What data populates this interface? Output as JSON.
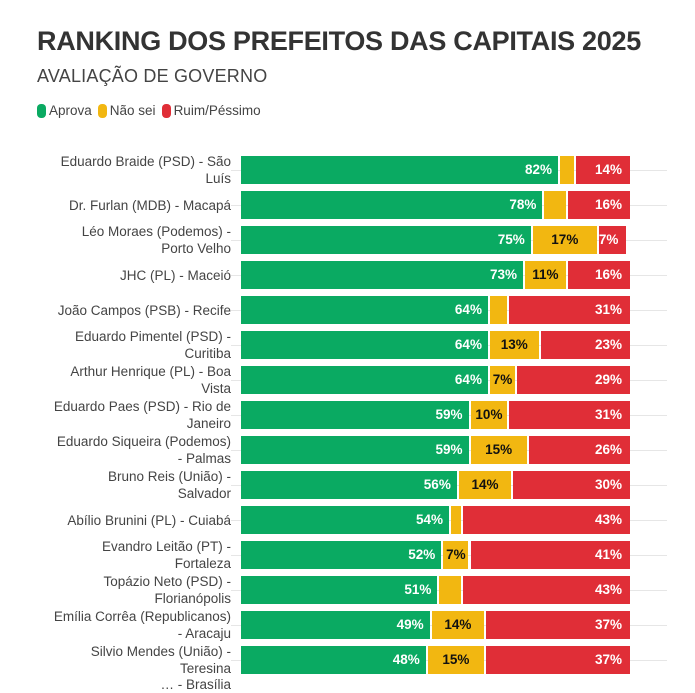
{
  "header": {
    "title": "RANKING DOS PREFEITOS DAS CAPITAIS 2025",
    "subtitle": "AVALIAÇÃO DE GOVERNO"
  },
  "legend": [
    {
      "label": "Aprova",
      "color": "#0aaa62"
    },
    {
      "label": "Não sei",
      "color": "#f2b711"
    },
    {
      "label": "Ruim/Péssimo",
      "color": "#e02e37"
    }
  ],
  "chart_data": {
    "type": "bar",
    "orientation": "horizontal",
    "stacked": true,
    "title": "RANKING DOS PREFEITOS DAS CAPITAIS 2025",
    "subtitle": "AVALIAÇÃO DE GOVERNO",
    "xlabel": "",
    "ylabel": "",
    "xlim": [
      0,
      100
    ],
    "grid": true,
    "legend_position": "top-left",
    "categories": [
      "Eduardo Braide (PSD) - São Luís",
      "Dr. Furlan (MDB) - Macapá",
      "Léo Moraes (Podemos) - Porto Velho",
      "JHC (PL) - Maceió",
      "João Campos (PSB) - Recife",
      "Eduardo Pimentel (PSD) - Curitiba",
      "Arthur Henrique (PL) - Boa Vista",
      "Eduardo Paes (PSD) - Rio de Janeiro",
      "Eduardo Siqueira (Podemos) - Palmas",
      "Bruno Reis (União) - Salvador",
      "Abílio Brunini (PL) - Cuiabá",
      "Evandro Leitão (PT) - Fortaleza",
      "Topázio Neto (PSD) - Florianópolis",
      "Emília Corrêa (Republicanos) - Aracaju",
      "Silvio Mendes (União) - Teresina"
    ],
    "label_lines": [
      [
        "Eduardo Braide (PSD) - São",
        "Luís"
      ],
      [
        "Dr. Furlan (MDB) - Macapá"
      ],
      [
        "Léo Moraes (Podemos) -",
        "Porto Velho"
      ],
      [
        "JHC (PL) - Maceió"
      ],
      [
        "João Campos (PSB) - Recife"
      ],
      [
        "Eduardo Pimentel (PSD) -",
        "Curitiba"
      ],
      [
        "Arthur Henrique (PL) - Boa",
        "Vista"
      ],
      [
        "Eduardo Paes (PSD) - Rio de",
        "Janeiro"
      ],
      [
        "Eduardo Siqueira (Podemos)",
        "- Palmas"
      ],
      [
        "Bruno Reis (União) -",
        "Salvador"
      ],
      [
        "Abílio Brunini (PL) - Cuiabá"
      ],
      [
        "Evandro Leitão (PT) -",
        "Fortaleza"
      ],
      [
        "Topázio Neto (PSD) -",
        "Florianópolis"
      ],
      [
        "Emília Corrêa (Republicanos)",
        "- Aracaju"
      ],
      [
        "Silvio Mendes (União) -",
        "Teresina"
      ]
    ],
    "series": [
      {
        "name": "Aprova",
        "color": "#0aaa62",
        "label_color": "#ffffff",
        "values": [
          82,
          78,
          75,
          73,
          64,
          64,
          64,
          59,
          59,
          56,
          54,
          52,
          51,
          49,
          48
        ],
        "show_label": [
          true,
          true,
          true,
          true,
          true,
          true,
          true,
          true,
          true,
          true,
          true,
          true,
          true,
          true,
          true
        ]
      },
      {
        "name": "Não sei",
        "color": "#f2b711",
        "label_color": "#111111",
        "values": [
          4,
          6,
          17,
          11,
          5,
          13,
          7,
          10,
          15,
          14,
          3,
          7,
          6,
          14,
          15
        ],
        "show_label": [
          false,
          false,
          true,
          true,
          false,
          true,
          true,
          true,
          true,
          true,
          false,
          true,
          false,
          true,
          true
        ]
      },
      {
        "name": "Ruim/Péssimo",
        "color": "#e02e37",
        "label_color": "#ffffff",
        "values": [
          14,
          16,
          7,
          16,
          31,
          23,
          29,
          31,
          26,
          30,
          43,
          41,
          43,
          37,
          37
        ],
        "show_label": [
          true,
          true,
          true,
          true,
          true,
          true,
          true,
          true,
          true,
          true,
          true,
          true,
          true,
          true,
          true
        ]
      }
    ],
    "value_suffix": "%",
    "partially_visible_next_row": "… - Brasília"
  }
}
